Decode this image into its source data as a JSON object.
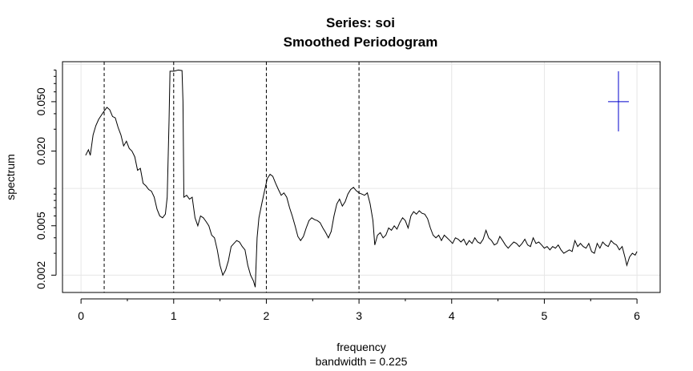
{
  "chart_data": {
    "type": "line",
    "title": "Series: soi",
    "subtitle": "Smoothed Periodogram",
    "xlabel": "frequency",
    "xsublabel": "bandwidth = 0.225",
    "ylabel": "spectrum",
    "y_scale": "log",
    "xlim": [
      -0.2,
      6.25
    ],
    "ylim": [
      0.00145,
      0.105
    ],
    "x_ticks": [
      "0",
      "1",
      "2",
      "3",
      "4",
      "5",
      "6"
    ],
    "y_ticks": [
      "0.002",
      "0.005",
      "0.020",
      "0.050"
    ],
    "grid": true,
    "reference_lines_x": [
      0.25,
      1,
      2,
      3
    ],
    "confidence_bar": {
      "x": 5.8,
      "center": 0.05,
      "lower": 0.0288,
      "upper": 0.088
    },
    "series": [
      {
        "points": [
          [
            0.05,
            0.0185
          ],
          [
            0.08,
            0.0205
          ],
          [
            0.1,
            0.0185
          ],
          [
            0.13,
            0.027
          ],
          [
            0.16,
            0.032
          ],
          [
            0.19,
            0.036
          ],
          [
            0.22,
            0.039
          ],
          [
            0.25,
            0.042
          ],
          [
            0.28,
            0.045
          ],
          [
            0.31,
            0.043
          ],
          [
            0.34,
            0.038
          ],
          [
            0.37,
            0.037
          ],
          [
            0.4,
            0.031
          ],
          [
            0.43,
            0.027
          ],
          [
            0.46,
            0.022
          ],
          [
            0.49,
            0.024
          ],
          [
            0.52,
            0.021
          ],
          [
            0.55,
            0.02
          ],
          [
            0.58,
            0.018
          ],
          [
            0.61,
            0.014
          ],
          [
            0.64,
            0.0145
          ],
          [
            0.67,
            0.011
          ],
          [
            0.7,
            0.0105
          ],
          [
            0.73,
            0.0098
          ],
          [
            0.76,
            0.0095
          ],
          [
            0.79,
            0.0085
          ],
          [
            0.82,
            0.0068
          ],
          [
            0.85,
            0.006
          ],
          [
            0.88,
            0.0058
          ],
          [
            0.91,
            0.0062
          ],
          [
            0.93,
            0.0085
          ],
          [
            0.95,
            0.035
          ],
          [
            0.96,
            0.088
          ],
          [
            1.0,
            0.088
          ],
          [
            1.05,
            0.09
          ],
          [
            1.09,
            0.089
          ],
          [
            1.1,
            0.05
          ],
          [
            1.11,
            0.0085
          ],
          [
            1.14,
            0.0088
          ],
          [
            1.17,
            0.0082
          ],
          [
            1.2,
            0.0085
          ],
          [
            1.23,
            0.0058
          ],
          [
            1.26,
            0.005
          ],
          [
            1.29,
            0.006
          ],
          [
            1.32,
            0.0058
          ],
          [
            1.35,
            0.0054
          ],
          [
            1.38,
            0.005
          ],
          [
            1.41,
            0.0042
          ],
          [
            1.44,
            0.004
          ],
          [
            1.47,
            0.0032
          ],
          [
            1.5,
            0.0024
          ],
          [
            1.53,
            0.002
          ],
          [
            1.56,
            0.0022
          ],
          [
            1.59,
            0.0026
          ],
          [
            1.62,
            0.0034
          ],
          [
            1.65,
            0.0036
          ],
          [
            1.68,
            0.0038
          ],
          [
            1.71,
            0.0037
          ],
          [
            1.74,
            0.0034
          ],
          [
            1.77,
            0.0032
          ],
          [
            1.8,
            0.0024
          ],
          [
            1.83,
            0.002
          ],
          [
            1.86,
            0.0018
          ],
          [
            1.88,
            0.0016
          ],
          [
            1.9,
            0.004
          ],
          [
            1.92,
            0.0058
          ],
          [
            1.95,
            0.0075
          ],
          [
            1.98,
            0.0095
          ],
          [
            2.01,
            0.012
          ],
          [
            2.04,
            0.013
          ],
          [
            2.07,
            0.0125
          ],
          [
            2.1,
            0.011
          ],
          [
            2.13,
            0.0098
          ],
          [
            2.16,
            0.0088
          ],
          [
            2.19,
            0.0092
          ],
          [
            2.22,
            0.0085
          ],
          [
            2.25,
            0.007
          ],
          [
            2.28,
            0.006
          ],
          [
            2.31,
            0.005
          ],
          [
            2.34,
            0.0041
          ],
          [
            2.37,
            0.0038
          ],
          [
            2.4,
            0.0041
          ],
          [
            2.43,
            0.0048
          ],
          [
            2.46,
            0.0055
          ],
          [
            2.49,
            0.0058
          ],
          [
            2.52,
            0.0056
          ],
          [
            2.55,
            0.0055
          ],
          [
            2.58,
            0.0053
          ],
          [
            2.61,
            0.0048
          ],
          [
            2.64,
            0.0044
          ],
          [
            2.67,
            0.004
          ],
          [
            2.7,
            0.0045
          ],
          [
            2.73,
            0.006
          ],
          [
            2.76,
            0.0075
          ],
          [
            2.79,
            0.0082
          ],
          [
            2.82,
            0.0072
          ],
          [
            2.85,
            0.0078
          ],
          [
            2.88,
            0.009
          ],
          [
            2.91,
            0.0098
          ],
          [
            2.94,
            0.0102
          ],
          [
            2.97,
            0.0096
          ],
          [
            3.0,
            0.0092
          ],
          [
            3.03,
            0.009
          ],
          [
            3.06,
            0.0088
          ],
          [
            3.09,
            0.0092
          ],
          [
            3.12,
            0.0075
          ],
          [
            3.15,
            0.0055
          ],
          [
            3.17,
            0.0035
          ],
          [
            3.2,
            0.0042
          ],
          [
            3.23,
            0.0044
          ],
          [
            3.26,
            0.004
          ],
          [
            3.29,
            0.0042
          ],
          [
            3.32,
            0.0048
          ],
          [
            3.35,
            0.0046
          ],
          [
            3.38,
            0.005
          ],
          [
            3.41,
            0.0047
          ],
          [
            3.44,
            0.0053
          ],
          [
            3.47,
            0.0058
          ],
          [
            3.5,
            0.0055
          ],
          [
            3.53,
            0.0048
          ],
          [
            3.56,
            0.006
          ],
          [
            3.59,
            0.0065
          ],
          [
            3.62,
            0.0062
          ],
          [
            3.65,
            0.0066
          ],
          [
            3.68,
            0.0063
          ],
          [
            3.71,
            0.0062
          ],
          [
            3.74,
            0.0057
          ],
          [
            3.77,
            0.0048
          ],
          [
            3.8,
            0.0042
          ],
          [
            3.83,
            0.004
          ],
          [
            3.86,
            0.0042
          ],
          [
            3.89,
            0.0038
          ],
          [
            3.92,
            0.0042
          ],
          [
            3.95,
            0.004
          ],
          [
            3.98,
            0.0038
          ],
          [
            4.01,
            0.0036
          ],
          [
            4.04,
            0.004
          ],
          [
            4.07,
            0.0039
          ],
          [
            4.1,
            0.0037
          ],
          [
            4.13,
            0.0039
          ],
          [
            4.16,
            0.0035
          ],
          [
            4.19,
            0.0038
          ],
          [
            4.22,
            0.0036
          ],
          [
            4.25,
            0.004
          ],
          [
            4.28,
            0.0037
          ],
          [
            4.31,
            0.0036
          ],
          [
            4.34,
            0.0039
          ],
          [
            4.37,
            0.0046
          ],
          [
            4.4,
            0.004
          ],
          [
            4.43,
            0.0038
          ],
          [
            4.46,
            0.0035
          ],
          [
            4.49,
            0.0036
          ],
          [
            4.52,
            0.0041
          ],
          [
            4.55,
            0.0038
          ],
          [
            4.58,
            0.0035
          ],
          [
            4.61,
            0.0033
          ],
          [
            4.64,
            0.0035
          ],
          [
            4.67,
            0.0037
          ],
          [
            4.7,
            0.0036
          ],
          [
            4.73,
            0.0034
          ],
          [
            4.76,
            0.0036
          ],
          [
            4.79,
            0.0039
          ],
          [
            4.82,
            0.0035
          ],
          [
            4.85,
            0.0034
          ],
          [
            4.88,
            0.004
          ],
          [
            4.91,
            0.0036
          ],
          [
            4.94,
            0.0037
          ],
          [
            4.97,
            0.0035
          ],
          [
            5.0,
            0.0033
          ],
          [
            5.03,
            0.0034
          ],
          [
            5.06,
            0.0032
          ],
          [
            5.09,
            0.0034
          ],
          [
            5.12,
            0.0033
          ],
          [
            5.15,
            0.0035
          ],
          [
            5.18,
            0.0032
          ],
          [
            5.21,
            0.003
          ],
          [
            5.24,
            0.0031
          ],
          [
            5.27,
            0.0032
          ],
          [
            5.3,
            0.0031
          ],
          [
            5.33,
            0.0038
          ],
          [
            5.36,
            0.0034
          ],
          [
            5.39,
            0.0036
          ],
          [
            5.42,
            0.0034
          ],
          [
            5.45,
            0.0033
          ],
          [
            5.48,
            0.0036
          ],
          [
            5.51,
            0.0031
          ],
          [
            5.54,
            0.003
          ],
          [
            5.57,
            0.0036
          ],
          [
            5.6,
            0.0033
          ],
          [
            5.63,
            0.0037
          ],
          [
            5.66,
            0.0035
          ],
          [
            5.69,
            0.0034
          ],
          [
            5.72,
            0.0038
          ],
          [
            5.75,
            0.0036
          ],
          [
            5.78,
            0.0035
          ],
          [
            5.81,
            0.0032
          ],
          [
            5.84,
            0.0034
          ],
          [
            5.87,
            0.0028
          ],
          [
            5.89,
            0.0024
          ],
          [
            5.92,
            0.0028
          ],
          [
            5.95,
            0.003
          ],
          [
            5.98,
            0.0029
          ],
          [
            6.0,
            0.0031
          ]
        ]
      }
    ]
  }
}
